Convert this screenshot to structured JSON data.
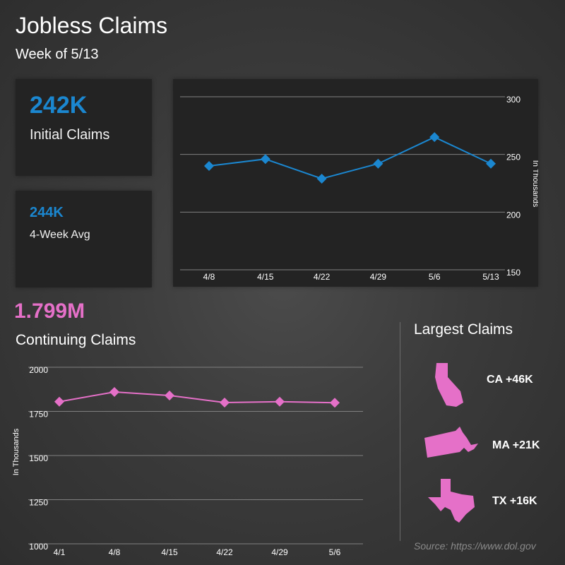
{
  "title": "Jobless Claims",
  "subtitle": "Week of 5/13",
  "initial": {
    "value": "242K",
    "label": "Initial Claims"
  },
  "avg": {
    "value": "244K",
    "label": "4-Week Avg"
  },
  "continuing": {
    "value": "1.799M",
    "label": "Continuing Claims"
  },
  "largest": {
    "title": "Largest Claims",
    "states": [
      {
        "label": "CA +46K",
        "icon": "california-icon"
      },
      {
        "label": "MA +21K",
        "icon": "massachusetts-icon"
      },
      {
        "label": "TX +16K",
        "icon": "texas-icon"
      }
    ]
  },
  "source": "Source: https://www.dol.gov",
  "colors": {
    "initial": "#1b87d0",
    "continuing": "#e570c8",
    "card": "#232323"
  },
  "chart_data": [
    {
      "type": "line",
      "categories": [
        "4/8",
        "4/15",
        "4/22",
        "4/29",
        "5/6",
        "5/13"
      ],
      "values": [
        240,
        246,
        229,
        242,
        265,
        242
      ],
      "ylabel": "In Thousands",
      "ylim": [
        150,
        300
      ],
      "yticks": [
        150,
        200,
        250,
        300
      ],
      "grid": true,
      "y_axis_side": "right"
    },
    {
      "type": "line",
      "categories": [
        "4/1",
        "4/8",
        "4/15",
        "4/22",
        "4/29",
        "5/6"
      ],
      "values": [
        1805,
        1860,
        1840,
        1800,
        1805,
        1799
      ],
      "ylabel": "In Thousands",
      "ylim": [
        1000,
        2000
      ],
      "yticks": [
        1000,
        1250,
        1500,
        1750,
        2000
      ],
      "grid": true,
      "y_axis_side": "left"
    }
  ]
}
